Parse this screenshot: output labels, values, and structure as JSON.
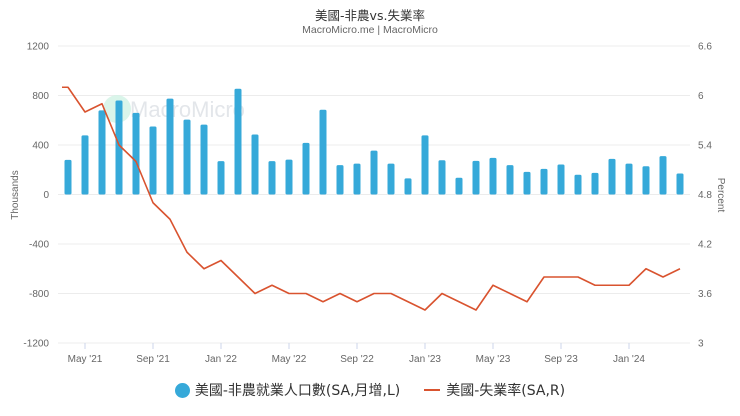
{
  "title": "美國-非農vs.失業率",
  "subtitle": "MacroMicro.me | MacroMicro",
  "watermark": "MacroMicro",
  "colors": {
    "bars": "#36a9d9",
    "line": "#d9532f",
    "grid": "#ececec",
    "watermark_circle": "#c8f0e0"
  },
  "legend": {
    "bars_label": "美國-非農就業人口數(SA,月增,L)",
    "line_label": "美國-失業率(SA,R)"
  },
  "chart_data": {
    "type": "bar+line",
    "title": "美國-非農vs.失業率",
    "subtitle": "MacroMicro.me | MacroMicro",
    "ylabel_left": "Thousands",
    "ylabel_right": "Percent",
    "ylim_left": [
      -1200,
      1200
    ],
    "ylim_right": [
      3,
      6.6
    ],
    "yticks_left": [
      1200,
      800,
      400,
      0,
      -400,
      -800,
      -1200
    ],
    "yticks_right": [
      "6.6",
      "6",
      "5.4",
      "4.8",
      "4.2",
      "3.6",
      "3"
    ],
    "xtick_labels": [
      "May '21",
      "Sep '21",
      "Jan '22",
      "May '22",
      "Sep '22",
      "Jan '23",
      "May '23",
      "Sep '23",
      "Jan '24"
    ],
    "xtick_index": [
      1,
      5,
      9,
      13,
      17,
      21,
      25,
      29,
      33
    ],
    "grid": true,
    "legend_position": "bottom",
    "categories": [
      "2021-04",
      "2021-05",
      "2021-06",
      "2021-07",
      "2021-08",
      "2021-09",
      "2021-10",
      "2021-11",
      "2021-12",
      "2022-01",
      "2022-02",
      "2022-03",
      "2022-04",
      "2022-05",
      "2022-06",
      "2022-07",
      "2022-08",
      "2022-09",
      "2022-10",
      "2022-11",
      "2022-12",
      "2023-01",
      "2023-02",
      "2023-03",
      "2023-04",
      "2023-05",
      "2023-06",
      "2023-07",
      "2023-08",
      "2023-09",
      "2023-10",
      "2023-11",
      "2023-12",
      "2024-01",
      "2024-02",
      "2024-03",
      "2024-04"
    ],
    "series": [
      {
        "name": "美國-非農就業人口數(SA,月增,L)",
        "type": "bar",
        "axis": "left",
        "values": [
          280,
          478,
          680,
          760,
          660,
          550,
          775,
          605,
          565,
          270,
          855,
          485,
          270,
          282,
          417,
          685,
          237,
          250,
          355,
          250,
          130,
          478,
          277,
          135,
          272,
          296,
          237,
          183,
          207,
          242,
          160,
          175,
          288,
          250,
          228,
          310,
          170
        ]
      },
      {
        "name": "美國-失業率(SA,R)",
        "type": "line",
        "axis": "right",
        "values": [
          6.1,
          5.8,
          5.9,
          5.4,
          5.2,
          4.7,
          4.5,
          4.1,
          3.9,
          4.0,
          3.8,
          3.6,
          3.7,
          3.6,
          3.6,
          3.5,
          3.6,
          3.5,
          3.6,
          3.6,
          3.5,
          3.4,
          3.6,
          3.5,
          3.4,
          3.7,
          3.6,
          3.5,
          3.8,
          3.8,
          3.8,
          3.7,
          3.7,
          3.7,
          3.9,
          3.8,
          3.9
        ]
      }
    ]
  }
}
